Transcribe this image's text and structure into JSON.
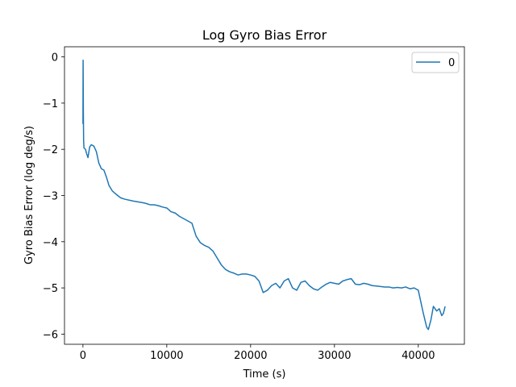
{
  "chart_data": {
    "type": "line",
    "title": "Log Gyro Bias Error",
    "xlabel": "Time (s)",
    "ylabel": "Gyro Bias Error (log deg/s)",
    "xlim": [
      -2200,
      45500
    ],
    "ylim": [
      -6.22,
      0.22
    ],
    "xticks": [
      0,
      10000,
      20000,
      30000,
      40000
    ],
    "xtick_labels": [
      "0",
      "10000",
      "20000",
      "30000",
      "40000"
    ],
    "yticks": [
      0,
      -1,
      -2,
      -3,
      -4,
      -5,
      -6
    ],
    "ytick_labels": [
      "0",
      "−1",
      "−2",
      "−3",
      "−4",
      "−5",
      "−6"
    ],
    "grid": false,
    "legend": "top-right",
    "series": [
      {
        "name": "0",
        "color": "#1f77b4",
        "x": [
          0,
          20,
          50,
          80,
          120,
          200,
          300,
          450,
          600,
          800,
          1000,
          1300,
          1600,
          1900,
          2200,
          2500,
          2800,
          3100,
          3500,
          4000,
          4500,
          5000,
          6000,
          7000,
          7500,
          8000,
          8500,
          9000,
          9500,
          10000,
          10500,
          11000,
          11500,
          12000,
          12500,
          13000,
          13500,
          14000,
          14500,
          15000,
          15500,
          16000,
          16500,
          17000,
          17500,
          18000,
          18500,
          19000,
          19500,
          20000,
          20500,
          21000,
          21500,
          22000,
          22500,
          23000,
          23500,
          24000,
          24500,
          25000,
          25500,
          26000,
          26500,
          27000,
          27500,
          28000,
          28500,
          29000,
          29500,
          30000,
          30500,
          31000,
          31500,
          32000,
          32500,
          33000,
          33500,
          34000,
          34500,
          35000,
          35500,
          36000,
          36500,
          37000,
          37500,
          38000,
          38500,
          39000,
          39500,
          40000,
          40300,
          40600,
          40800,
          41000,
          41200,
          41500,
          41800,
          42200,
          42500,
          42800,
          43000,
          43200
        ],
        "y": [
          -1.45,
          -0.07,
          -1.2,
          -1.8,
          -1.97,
          -1.98,
          -2.0,
          -2.1,
          -2.18,
          -1.95,
          -1.9,
          -1.93,
          -2.05,
          -2.3,
          -2.42,
          -2.45,
          -2.6,
          -2.78,
          -2.9,
          -2.98,
          -3.05,
          -3.08,
          -3.12,
          -3.15,
          -3.17,
          -3.2,
          -3.2,
          -3.22,
          -3.25,
          -3.27,
          -3.35,
          -3.38,
          -3.45,
          -3.5,
          -3.55,
          -3.6,
          -3.88,
          -4.02,
          -4.08,
          -4.12,
          -4.2,
          -4.35,
          -4.5,
          -4.6,
          -4.65,
          -4.68,
          -4.72,
          -4.7,
          -4.7,
          -4.72,
          -4.75,
          -4.85,
          -5.1,
          -5.05,
          -4.95,
          -4.9,
          -5.0,
          -4.85,
          -4.8,
          -5.0,
          -5.05,
          -4.88,
          -4.85,
          -4.95,
          -5.02,
          -5.05,
          -4.98,
          -4.92,
          -4.88,
          -4.9,
          -4.92,
          -4.85,
          -4.82,
          -4.8,
          -4.92,
          -4.93,
          -4.9,
          -4.92,
          -4.95,
          -4.96,
          -4.97,
          -4.98,
          -4.98,
          -5.0,
          -4.99,
          -5.0,
          -4.98,
          -5.02,
          -5.0,
          -5.05,
          -5.3,
          -5.55,
          -5.7,
          -5.85,
          -5.9,
          -5.7,
          -5.4,
          -5.5,
          -5.45,
          -5.6,
          -5.55,
          -5.4
        ]
      }
    ]
  }
}
